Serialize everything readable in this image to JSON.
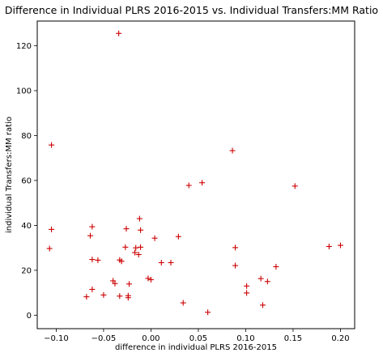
{
  "chart_data": {
    "type": "scatter",
    "title": "Difference in Individual PLRS 2016-2015 vs. Individual Transfers:MM Ratio",
    "xlabel": "difference in individual PLRS 2016-2015",
    "ylabel": "individual Transfers:MM ratio",
    "xlim": [
      -0.12,
      0.215
    ],
    "ylim": [
      -6,
      131
    ],
    "x_ticks": [
      -0.1,
      -0.05,
      0.0,
      0.05,
      0.1,
      0.15,
      0.2
    ],
    "x_tick_labels": [
      "−0.10",
      "−0.05",
      "0.00",
      "0.05",
      "0.10",
      "0.15",
      "0.20"
    ],
    "y_ticks": [
      0,
      20,
      40,
      60,
      80,
      100,
      120
    ],
    "y_tick_labels": [
      "0",
      "20",
      "40",
      "60",
      "80",
      "100",
      "120"
    ],
    "grid": false,
    "marker": "+",
    "color": "#cc0000",
    "series": [
      {
        "points": [
          [
            -0.034,
            125.5
          ],
          [
            -0.105,
            75.8
          ],
          [
            -0.105,
            38.2
          ],
          [
            -0.107,
            29.7
          ],
          [
            -0.062,
            39.4
          ],
          [
            -0.064,
            35.4
          ],
          [
            -0.062,
            24.8
          ],
          [
            -0.056,
            24.5
          ],
          [
            -0.062,
            11.5
          ],
          [
            -0.068,
            8.2
          ],
          [
            -0.05,
            9.0
          ],
          [
            -0.04,
            15.3
          ],
          [
            -0.038,
            14.1
          ],
          [
            -0.033,
            24.6
          ],
          [
            -0.031,
            24.0
          ],
          [
            -0.033,
            8.5
          ],
          [
            -0.026,
            38.5
          ],
          [
            -0.027,
            30.3
          ],
          [
            -0.023,
            13.9
          ],
          [
            -0.024,
            8.7
          ],
          [
            -0.024,
            7.8
          ],
          [
            -0.017,
            27.9
          ],
          [
            -0.016,
            30.0
          ],
          [
            -0.013,
            27.0
          ],
          [
            -0.012,
            43.0
          ],
          [
            -0.011,
            37.9
          ],
          [
            -0.011,
            30.3
          ],
          [
            -0.003,
            16.4
          ],
          [
            0.0,
            15.8
          ],
          [
            0.004,
            34.3
          ],
          [
            0.011,
            23.4
          ],
          [
            0.021,
            23.4
          ],
          [
            0.029,
            35.0
          ],
          [
            0.034,
            5.5
          ],
          [
            0.04,
            57.8
          ],
          [
            0.054,
            59.0
          ],
          [
            0.06,
            1.3
          ],
          [
            0.086,
            73.3
          ],
          [
            0.089,
            30.1
          ],
          [
            0.089,
            22.1
          ],
          [
            0.101,
            13.0
          ],
          [
            0.101,
            9.9
          ],
          [
            0.116,
            16.3
          ],
          [
            0.118,
            4.5
          ],
          [
            0.123,
            15.0
          ],
          [
            0.132,
            21.6
          ],
          [
            0.152,
            57.5
          ],
          [
            0.188,
            30.6
          ],
          [
            0.2,
            31.1
          ]
        ]
      }
    ]
  }
}
